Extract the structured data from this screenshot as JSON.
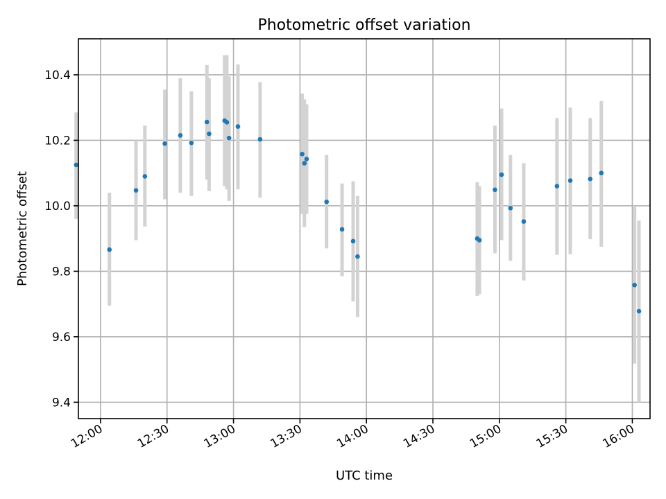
{
  "chart_data": {
    "type": "scatter",
    "title": "Photometric offset variation",
    "xlabel": "UTC time",
    "ylabel": "Photometric offset",
    "xlim": [
      "11:50",
      "16:08"
    ],
    "ylim": [
      9.35,
      10.51
    ],
    "x_ticks": [
      "12:00",
      "12:30",
      "13:00",
      "13:30",
      "14:00",
      "14:30",
      "15:00",
      "15:30",
      "16:00"
    ],
    "y_ticks": [
      "9.4",
      "9.6",
      "9.8",
      "10.0",
      "10.2",
      "10.4"
    ],
    "grid": true,
    "legend": "none",
    "colors": {
      "points": "#1f77b4",
      "errorbars": "#d3d3d3",
      "grid": "#b0b0b0"
    },
    "series": [
      {
        "points": [
          {
            "x": "11:49",
            "y": 10.125,
            "low": 9.96,
            "high": 10.285
          },
          {
            "x": "12:04",
            "y": 9.866,
            "low": 9.695,
            "high": 10.04
          },
          {
            "x": "12:16",
            "y": 10.047,
            "low": 9.895,
            "high": 10.2
          },
          {
            "x": "12:20",
            "y": 10.09,
            "low": 9.937,
            "high": 10.245
          },
          {
            "x": "12:29",
            "y": 10.19,
            "low": 10.02,
            "high": 10.355
          },
          {
            "x": "12:36",
            "y": 10.215,
            "low": 10.04,
            "high": 10.39
          },
          {
            "x": "12:41",
            "y": 10.192,
            "low": 10.03,
            "high": 10.35
          },
          {
            "x": "12:48",
            "y": 10.256,
            "low": 10.08,
            "high": 10.43
          },
          {
            "x": "12:49",
            "y": 10.22,
            "low": 10.045,
            "high": 10.39
          },
          {
            "x": "12:56",
            "y": 10.26,
            "low": 10.06,
            "high": 10.46
          },
          {
            "x": "12:57",
            "y": 10.255,
            "low": 10.05,
            "high": 10.46
          },
          {
            "x": "12:58",
            "y": 10.207,
            "low": 10.015,
            "high": 10.395
          },
          {
            "x": "13:02",
            "y": 10.242,
            "low": 10.05,
            "high": 10.432
          },
          {
            "x": "13:12",
            "y": 10.203,
            "low": 10.025,
            "high": 10.378
          },
          {
            "x": "13:31",
            "y": 10.158,
            "low": 9.975,
            "high": 10.343
          },
          {
            "x": "13:32",
            "y": 10.13,
            "low": 9.935,
            "high": 10.325
          },
          {
            "x": "13:33",
            "y": 10.143,
            "low": 9.975,
            "high": 10.31
          },
          {
            "x": "13:42",
            "y": 10.012,
            "low": 9.87,
            "high": 10.155
          },
          {
            "x": "13:49",
            "y": 9.928,
            "low": 9.785,
            "high": 10.068
          },
          {
            "x": "13:54",
            "y": 9.892,
            "low": 9.708,
            "high": 10.075
          },
          {
            "x": "13:56",
            "y": 9.845,
            "low": 9.66,
            "high": 10.03
          },
          {
            "x": "14:50",
            "y": 9.9,
            "low": 9.725,
            "high": 10.072
          },
          {
            "x": "14:51",
            "y": 9.895,
            "low": 9.73,
            "high": 10.06
          },
          {
            "x": "14:58",
            "y": 10.049,
            "low": 9.855,
            "high": 10.245
          },
          {
            "x": "15:01",
            "y": 10.095,
            "low": 9.895,
            "high": 10.297
          },
          {
            "x": "15:05",
            "y": 9.993,
            "low": 9.832,
            "high": 10.155
          },
          {
            "x": "15:11",
            "y": 9.952,
            "low": 9.772,
            "high": 10.13
          },
          {
            "x": "15:26",
            "y": 10.06,
            "low": 9.85,
            "high": 10.268
          },
          {
            "x": "15:32",
            "y": 10.077,
            "low": 9.852,
            "high": 10.3
          },
          {
            "x": "15:41",
            "y": 10.082,
            "low": 9.898,
            "high": 10.268
          },
          {
            "x": "15:46",
            "y": 10.1,
            "low": 9.875,
            "high": 10.32
          },
          {
            "x": "16:01",
            "y": 9.758,
            "low": 9.518,
            "high": 10.0
          },
          {
            "x": "16:03",
            "y": 9.678,
            "low": 9.4,
            "high": 9.955
          }
        ]
      }
    ]
  }
}
